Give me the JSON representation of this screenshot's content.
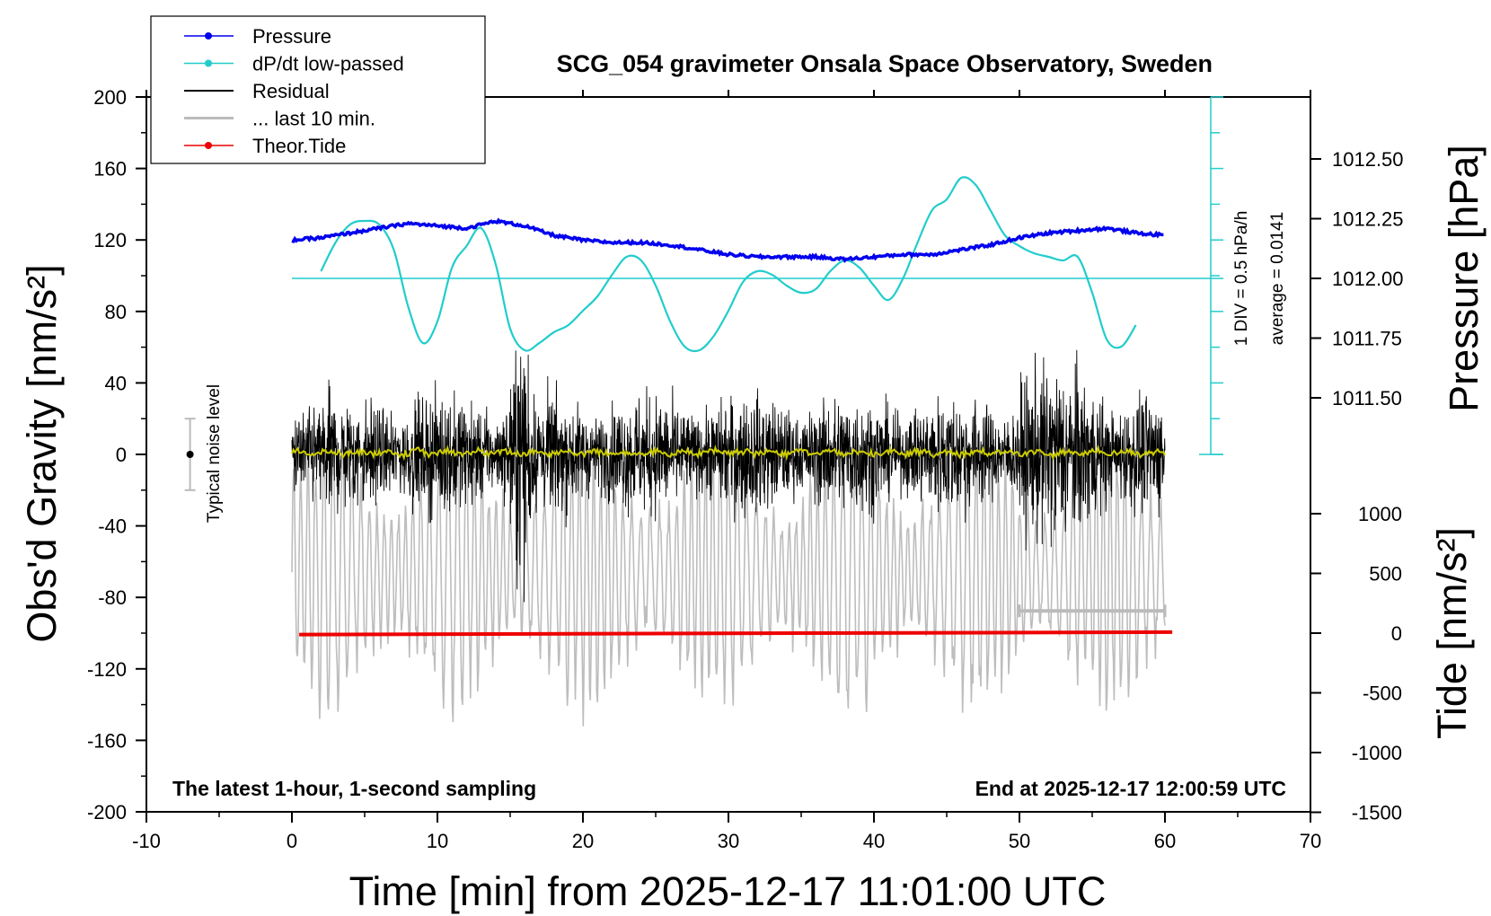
{
  "chart_data": {
    "type": "line",
    "title": "SCG_054 gravimeter Onsala Space Observatory, Sweden",
    "xlabel": "Time [min] from 2025-12-17 11:01:00 UTC",
    "ylabel": "Obs'd Gravity [nm/s²]",
    "ylabel_right_top": "Pressure [hPa]",
    "ylabel_right_bottom": "Tide [nm/s²]",
    "xlim": [
      -10,
      70
    ],
    "ylim": [
      -200,
      200
    ],
    "x_ticks": [
      "-10",
      "0",
      "10",
      "20",
      "30",
      "40",
      "50",
      "60",
      "70"
    ],
    "y_ticks": [
      "200",
      "160",
      "120",
      "80",
      "40",
      "0",
      "-40",
      "-80",
      "-120",
      "-160",
      "-200"
    ],
    "pressure_ticks": [
      "1012.50",
      "1012.25",
      "1012.00",
      "1011.75",
      "1011.50"
    ],
    "tide_ticks": [
      "1000",
      "500",
      "0",
      "-500",
      "-1000",
      "-1500"
    ],
    "grid": false,
    "legend_position": "top-left",
    "legend": [
      {
        "label": "Pressure",
        "color": "#0000ee"
      },
      {
        "label": "dP/dt low-passed",
        "color": "#22cccc"
      },
      {
        "label": "Residual",
        "color": "#000000"
      },
      {
        "label": "... last 10 min.",
        "color": "#bbbbbb"
      },
      {
        "label": "Theor.Tide",
        "color": "#ee0000"
      }
    ],
    "annotations": {
      "bottom_left": "The latest 1-hour, 1-second sampling",
      "bottom_right": "End at 2025-12-17 12:00:59 UTC",
      "scale_div": "1 DIV = 0.5 hPa/h",
      "average": "average = 0.0141",
      "noise": "Typical noise level"
    },
    "series": [
      {
        "name": "Pressure",
        "x": [
          0,
          2,
          4,
          6,
          8,
          10,
          12,
          14,
          16,
          18,
          20,
          22,
          24,
          26,
          28,
          30,
          32,
          34,
          36,
          38,
          40,
          42,
          44,
          46,
          48,
          50,
          52,
          54,
          56,
          58,
          60
        ],
        "y": [
          1012.16,
          1012.17,
          1012.19,
          1012.21,
          1012.23,
          1012.22,
          1012.21,
          1012.24,
          1012.22,
          1012.18,
          1012.16,
          1012.15,
          1012.15,
          1012.14,
          1012.12,
          1012.1,
          1012.09,
          1012.09,
          1012.09,
          1012.08,
          1012.09,
          1012.1,
          1012.1,
          1012.12,
          1012.14,
          1012.17,
          1012.19,
          1012.2,
          1012.21,
          1012.19,
          1012.18
        ]
      },
      {
        "name": "dP/dt low-passed",
        "x": [
          2,
          3,
          4,
          5,
          6,
          7,
          8,
          9,
          10,
          11,
          12,
          13,
          14,
          15,
          16,
          17,
          18,
          19,
          20,
          21,
          22,
          23,
          24,
          25,
          26,
          27,
          28,
          29,
          30,
          31,
          32,
          33,
          34,
          35,
          36,
          37,
          38,
          39,
          40,
          41,
          42,
          43,
          44,
          45,
          46,
          47,
          48,
          49,
          50,
          51,
          52,
          53,
          54,
          55,
          56,
          57,
          58
        ],
        "y": [
          0.1,
          0.5,
          0.75,
          0.8,
          0.75,
          0.4,
          -0.4,
          -0.9,
          -0.6,
          0.15,
          0.45,
          0.7,
          0.2,
          -0.7,
          -1.0,
          -0.9,
          -0.75,
          -0.65,
          -0.45,
          -0.25,
          0.05,
          0.3,
          0.25,
          -0.1,
          -0.6,
          -0.95,
          -1.0,
          -0.8,
          -0.45,
          -0.05,
          0.1,
          0.05,
          -0.1,
          -0.2,
          -0.15,
          0.1,
          0.25,
          0.15,
          -0.1,
          -0.3,
          0.0,
          0.5,
          0.95,
          1.1,
          1.4,
          1.3,
          0.95,
          0.6,
          0.45,
          0.35,
          0.3,
          0.25,
          0.3,
          -0.2,
          -0.85,
          -0.95,
          -0.65
        ]
      },
      {
        "name": "Theor.Tide",
        "x": [
          0.5,
          60.5
        ],
        "y": [
          -12,
          8
        ]
      }
    ],
    "residual": {
      "x_range": [
        0,
        60
      ],
      "typical_amplitude": 35,
      "max_spike": 90,
      "min_spike": -100
    },
    "last_10_min": {
      "x_range": [
        50,
        60
      ],
      "level": -66
    },
    "noise_level_bar": {
      "x": -7,
      "y": 0,
      "error": 20
    }
  }
}
